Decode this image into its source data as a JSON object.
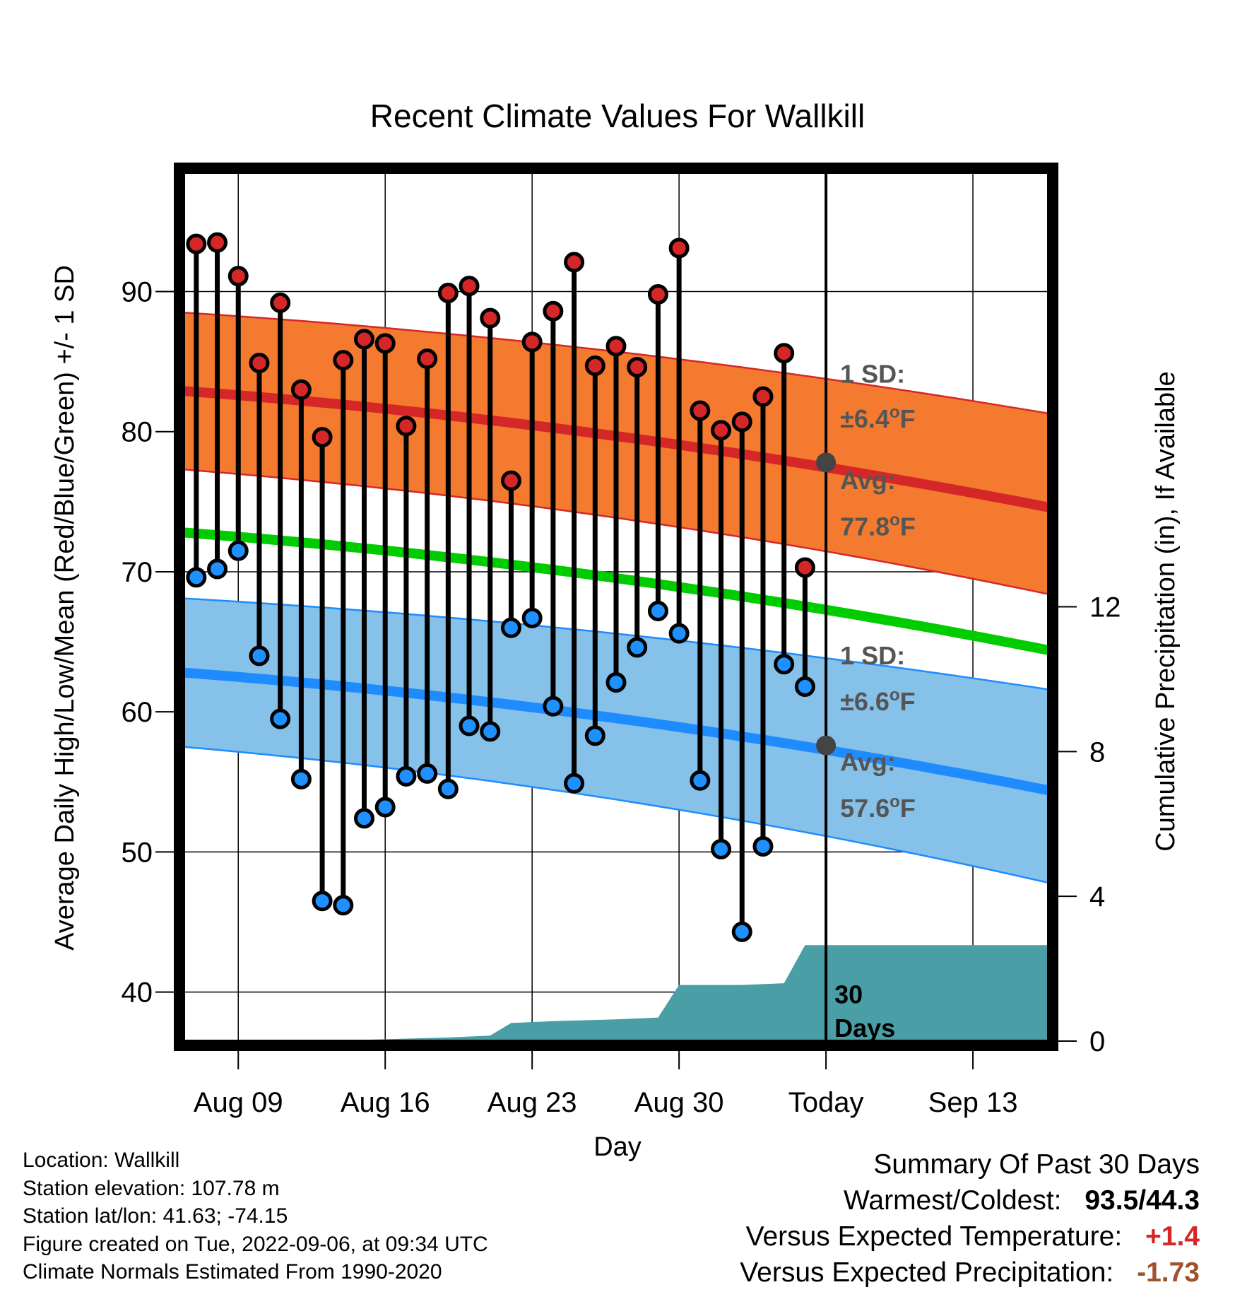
{
  "chart_data": {
    "type": "line",
    "title": "Recent Climate Values For Wallkill",
    "xlabel": "Day",
    "ylabel_left": "Average Daily High/Low/Mean (Red/Blue/Green) +/- 1 SD",
    "ylabel_right": "Cumulative Precipitation (in), If Available",
    "ylim_left": [
      36.5,
      98.5
    ],
    "ylim_right": [
      0,
      24
    ],
    "yticks_left": [
      "40",
      "50",
      "60",
      "70",
      "80",
      "90"
    ],
    "yticks_right": [
      "0",
      "4",
      "8",
      "12"
    ],
    "x_domain": [
      6.4,
      47.6
    ],
    "x_ticks": [
      {
        "x": 9,
        "label": "Aug 09"
      },
      {
        "x": 16,
        "label": "Aug 16"
      },
      {
        "x": 23,
        "label": "Aug 23"
      },
      {
        "x": 30,
        "label": "Aug 30"
      },
      {
        "x": 37,
        "label": "Today"
      },
      {
        "x": 44,
        "label": "Sep 13"
      }
    ],
    "today_x": 37,
    "days": [
      7,
      8,
      9,
      10,
      11,
      12,
      13,
      14,
      15,
      16,
      17,
      18,
      19,
      20,
      21,
      22,
      23,
      24,
      25,
      26,
      27,
      28,
      29,
      30,
      31,
      32,
      33,
      34,
      35,
      36
    ],
    "highs": [
      93.4,
      93.5,
      91.1,
      84.9,
      89.2,
      83.0,
      79.6,
      85.1,
      86.6,
      86.3,
      80.4,
      85.2,
      89.9,
      90.4,
      88.1,
      76.5,
      86.4,
      88.6,
      92.1,
      84.7,
      86.1,
      84.6,
      89.8,
      93.1,
      81.5,
      80.1,
      80.7,
      82.5,
      85.6,
      70.3
    ],
    "lows": [
      69.6,
      70.2,
      71.5,
      64.0,
      59.5,
      55.2,
      46.5,
      46.2,
      52.4,
      53.2,
      55.4,
      55.6,
      54.5,
      59.0,
      58.6,
      66.0,
      66.7,
      60.4,
      54.9,
      58.3,
      62.1,
      64.6,
      67.2,
      65.6,
      55.1,
      50.2,
      44.3,
      50.4,
      63.4,
      61.8
    ],
    "normals": {
      "x": [
        6.4,
        47.6
      ],
      "high_mean": [
        82.9,
        74.6
      ],
      "high_sd_upper": [
        88.5,
        81.3
      ],
      "high_sd_lower": [
        77.3,
        68.4
      ],
      "mean": [
        72.8,
        64.4
      ],
      "low_mean": [
        62.8,
        54.4
      ],
      "low_sd_upper": [
        68.1,
        61.6
      ],
      "low_sd_lower": [
        57.5,
        47.8
      ]
    },
    "today_avg_high": 77.8,
    "today_avg_low": 57.6,
    "annotations": {
      "high_sd_label": "1 SD:",
      "high_sd_value": "±6.4",
      "high_avg_label": "Avg:",
      "high_avg_value": "77.8",
      "low_sd_label": "1 SD:",
      "low_sd_value": "±6.6",
      "low_avg_label": "Avg:",
      "low_avg_value": "57.6",
      "deg_o": "o",
      "unit_f": "F",
      "days_line1": "30",
      "days_line2": "Days"
    },
    "precip": {
      "x": [
        6.4,
        13,
        16,
        19,
        21,
        22,
        24,
        27,
        29,
        30,
        33,
        35,
        36,
        47.6
      ],
      "y": [
        0.0,
        0.0,
        0.05,
        0.1,
        0.15,
        0.5,
        0.55,
        0.6,
        0.65,
        1.55,
        1.55,
        1.6,
        2.65,
        2.65
      ]
    },
    "colors": {
      "high_band": "#f47a2f",
      "high_line": "#d62728",
      "mean_line": "#00cc00",
      "low_band": "#85c1e9",
      "low_line": "#1e8cff",
      "high_dot": "#d62728",
      "low_dot": "#1e90ff",
      "precip_fill": "#4a9fa6",
      "annotation_text": "#555555",
      "today_dot": "#444444"
    }
  },
  "info": {
    "location": "Location: Wallkill",
    "elevation": "Station elevation: 107.78 m",
    "latlon": "Station lat/lon: 41.63; -74.15",
    "created": "Figure created on Tue, 2022-09-06, at 09:34 UTC",
    "normals": "Climate Normals Estimated From 1990-2020"
  },
  "summary": {
    "heading": "Summary Of Past 30 Days",
    "warmest_coldest_label": "Warmest/Coldest:",
    "warmest_coldest_value": "93.5/44.3",
    "temp_label": "Versus Expected Temperature:",
    "temp_value": "+1.4",
    "precip_label": "Versus Expected Precipitation:",
    "precip_value": "-1.73"
  }
}
